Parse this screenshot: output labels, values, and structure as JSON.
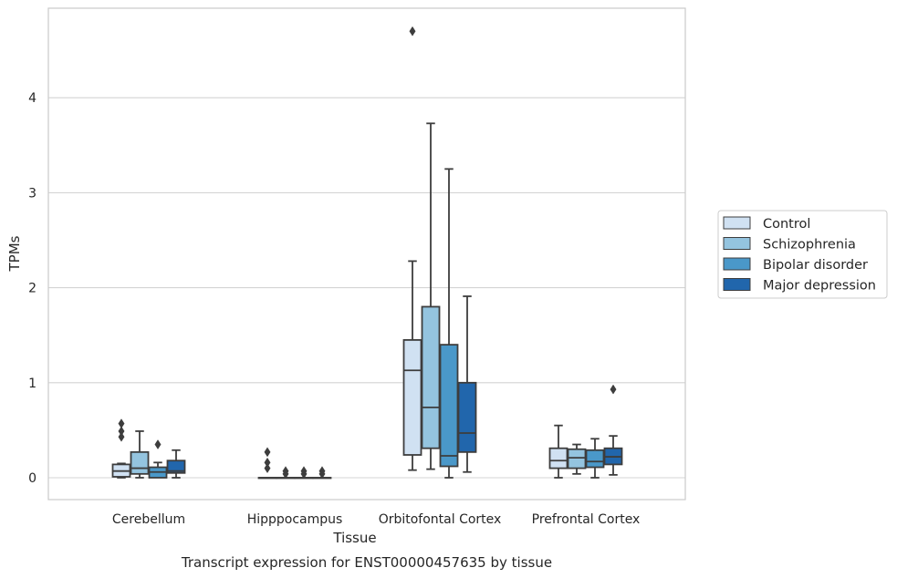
{
  "chart_data": {
    "type": "box",
    "title": "Transcript expression for ENST00000457635 by tissue",
    "xlabel": "Tissue",
    "ylabel": "TPMs",
    "ylim": [
      -0.23,
      4.95
    ],
    "yticks": [
      0,
      1,
      2,
      3,
      4
    ],
    "grid": "horizontal",
    "legend_position": "right",
    "categories": [
      "Cerebellum",
      "Hipppocampus",
      "Orbitofontal Cortex",
      "Prefrontal Cortex"
    ],
    "series": [
      {
        "name": "Control",
        "color": "#d0e1f2",
        "boxes": [
          {
            "whislo": 0.0,
            "q1": 0.01,
            "med": 0.07,
            "q3": 0.14,
            "whishi": 0.15,
            "fliers": [
              0.43,
              0.49,
              0.57
            ]
          },
          {
            "whislo": 0.0,
            "q1": 0.0,
            "med": 0.0,
            "q3": 0.0,
            "whishi": 0.0,
            "fliers": [
              0.1,
              0.16,
              0.27
            ]
          },
          {
            "whislo": 0.08,
            "q1": 0.24,
            "med": 1.13,
            "q3": 1.45,
            "whishi": 2.28,
            "fliers": [
              4.7
            ]
          },
          {
            "whislo": 0.0,
            "q1": 0.1,
            "med": 0.18,
            "q3": 0.31,
            "whishi": 0.55,
            "fliers": []
          }
        ]
      },
      {
        "name": "Schizophrenia",
        "color": "#94c4df",
        "boxes": [
          {
            "whislo": 0.0,
            "q1": 0.04,
            "med": 0.1,
            "q3": 0.27,
            "whishi": 0.49,
            "fliers": []
          },
          {
            "whislo": 0.0,
            "q1": 0.0,
            "med": 0.0,
            "q3": 0.0,
            "whishi": 0.0,
            "fliers": [
              0.04,
              0.07
            ]
          },
          {
            "whislo": 0.09,
            "q1": 0.31,
            "med": 0.74,
            "q3": 1.8,
            "whishi": 3.73,
            "fliers": []
          },
          {
            "whislo": 0.04,
            "q1": 0.1,
            "med": 0.21,
            "q3": 0.3,
            "whishi": 0.35,
            "fliers": []
          }
        ]
      },
      {
        "name": "Bipolar disorder",
        "color": "#4a98c9",
        "boxes": [
          {
            "whislo": 0.0,
            "q1": 0.0,
            "med": 0.06,
            "q3": 0.11,
            "whishi": 0.16,
            "fliers": [
              0.35
            ]
          },
          {
            "whislo": 0.0,
            "q1": 0.0,
            "med": 0.0,
            "q3": 0.0,
            "whishi": 0.0,
            "fliers": [
              0.04,
              0.07
            ]
          },
          {
            "whislo": 0.0,
            "q1": 0.12,
            "med": 0.23,
            "q3": 1.4,
            "whishi": 3.25,
            "fliers": []
          },
          {
            "whislo": 0.0,
            "q1": 0.11,
            "med": 0.17,
            "q3": 0.29,
            "whishi": 0.41,
            "fliers": []
          }
        ]
      },
      {
        "name": "Major depression",
        "color": "#2166ac",
        "boxes": [
          {
            "whislo": 0.0,
            "q1": 0.05,
            "med": 0.07,
            "q3": 0.18,
            "whishi": 0.29,
            "fliers": []
          },
          {
            "whislo": 0.0,
            "q1": 0.0,
            "med": 0.0,
            "q3": 0.0,
            "whishi": 0.0,
            "fliers": [
              0.04,
              0.07
            ]
          },
          {
            "whislo": 0.06,
            "q1": 0.27,
            "med": 0.47,
            "q3": 1.0,
            "whishi": 1.91,
            "fliers": []
          },
          {
            "whislo": 0.03,
            "q1": 0.14,
            "med": 0.22,
            "q3": 0.31,
            "whishi": 0.44,
            "fliers": [
              0.93
            ]
          }
        ]
      }
    ]
  }
}
